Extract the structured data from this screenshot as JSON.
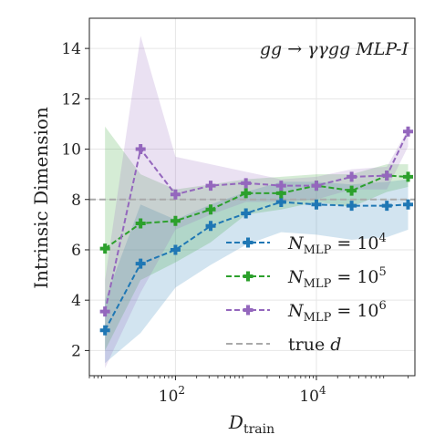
{
  "chart_data": {
    "type": "line",
    "annotation": "gg → γγgg MLP-I",
    "xlabel_main": "D",
    "xlabel_sub": "train",
    "ylabel": "Intrinsic Dimension",
    "xscale": "log",
    "xlim": [
      6,
      250000
    ],
    "ylim": [
      1,
      15.2
    ],
    "yticks": [
      2,
      4,
      6,
      8,
      10,
      12,
      14
    ],
    "xticks": [
      {
        "value": 100,
        "base": "10",
        "exp": "2"
      },
      {
        "value": 10000,
        "base": "10",
        "exp": "4"
      }
    ],
    "grid": true,
    "legend_position": "lower-right",
    "x": [
      10,
      32,
      100,
      316,
      1000,
      3162,
      10000,
      31623,
      100000,
      200000
    ],
    "series": [
      {
        "name": "N_MLP = 10^4",
        "label_main": "N",
        "label_sub": "MLP",
        "label_eq": " = 10",
        "label_exp": "4",
        "color": "#1f77b4",
        "values": [
          2.8,
          5.45,
          6.0,
          6.95,
          7.45,
          7.9,
          7.8,
          7.75,
          7.75,
          7.8
        ],
        "lower": [
          1.5,
          2.7,
          4.5,
          5.4,
          6.2,
          6.7,
          6.6,
          6.4,
          6.5,
          6.8
        ],
        "upper": [
          4.0,
          7.8,
          7.2,
          7.8,
          8.3,
          8.7,
          8.7,
          8.6,
          8.7,
          8.8
        ]
      },
      {
        "name": "N_MLP = 10^5",
        "label_main": "N",
        "label_sub": "MLP",
        "label_eq": " = 10",
        "label_exp": "5",
        "color": "#2ca02c",
        "values": [
          6.05,
          7.05,
          7.15,
          7.6,
          8.25,
          8.25,
          8.55,
          8.35,
          8.95,
          8.9
        ],
        "lower": [
          2.0,
          4.8,
          5.5,
          6.3,
          7.4,
          7.6,
          7.9,
          7.7,
          8.3,
          8.5
        ],
        "upper": [
          10.9,
          9.0,
          8.4,
          8.6,
          8.8,
          8.9,
          9.0,
          9.0,
          9.4,
          9.4
        ]
      },
      {
        "name": "N_MLP = 10^6",
        "label_main": "N",
        "label_sub": "MLP",
        "label_eq": " = 10",
        "label_exp": "6",
        "color": "#9467bd",
        "values": [
          3.55,
          10.0,
          8.2,
          8.55,
          8.65,
          8.55,
          8.55,
          8.9,
          8.95,
          10.7
        ],
        "lower": [
          1.3,
          4.3,
          6.8,
          7.4,
          7.9,
          7.9,
          8.0,
          8.4,
          8.4,
          10.1
        ],
        "upper": [
          4.8,
          14.5,
          9.7,
          9.4,
          9.1,
          8.8,
          8.9,
          9.2,
          9.3,
          10.8
        ]
      }
    ],
    "reference_line": {
      "label_text": "true ",
      "label_var": "d",
      "value": 8,
      "color": "#aaaaaa"
    }
  }
}
